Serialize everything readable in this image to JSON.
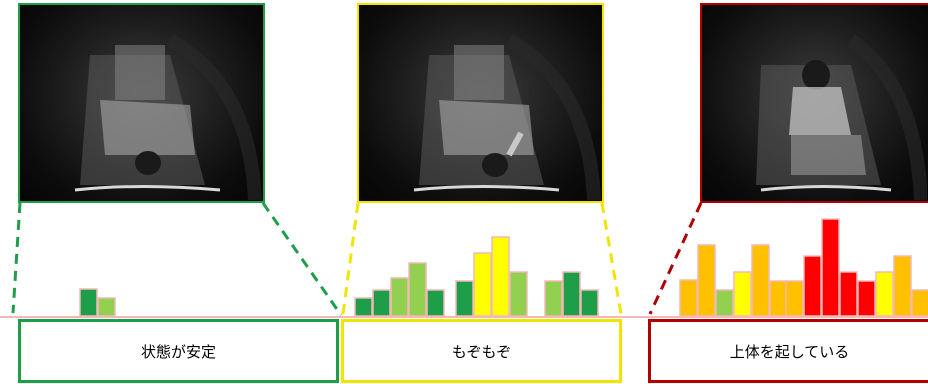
{
  "states": [
    {
      "label": "状態が安定",
      "color": "#1f9e4a"
    },
    {
      "label": "もぞもぞ",
      "color": "#f3e400"
    },
    {
      "label": "上体を起している",
      "color": "#b00000"
    }
  ],
  "bar_colors": {
    "dark_green": "#1f9e4a",
    "light_green": "#92d050",
    "yellow": "#ffff00",
    "orange": "#ffc000",
    "red": "#ff0000",
    "outline": "#f3b8b8"
  },
  "icons": [
    "camera-frame-stable",
    "camera-frame-fidgeting",
    "camera-frame-sitting-up"
  ]
}
